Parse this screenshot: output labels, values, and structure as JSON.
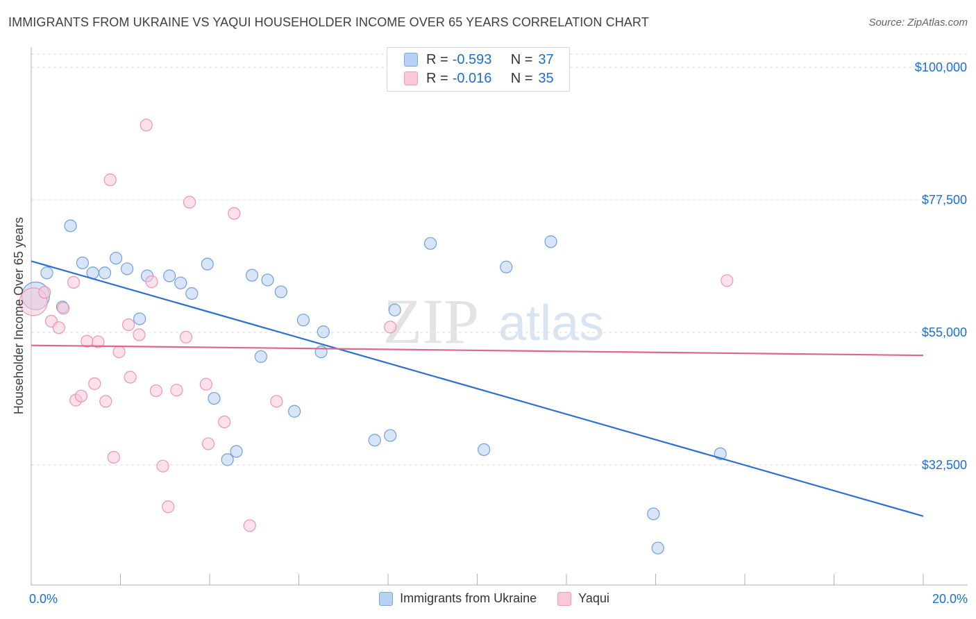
{
  "title": "IMMIGRANTS FROM UKRAINE VS YAQUI HOUSEHOLDER INCOME OVER 65 YEARS CORRELATION CHART",
  "source": "Source: ZipAtlas.com",
  "watermark": {
    "zip": "ZIP",
    "atlas": "atlas"
  },
  "colors": {
    "blue_fill": "#b8d0f3",
    "blue_stroke": "#6f9fdc",
    "blue_line": "#2a6fd1",
    "pink_fill": "#f9c9d8",
    "pink_stroke": "#ec95b1",
    "pink_line": "#e2638f",
    "accent_text": "#1a6fd1",
    "grid": "#d8d8d8"
  },
  "legend_top": [
    {
      "r_label": "R =",
      "r_value": "-0.593",
      "n_label": "N =",
      "n_value": "37"
    },
    {
      "r_label": "R =",
      "r_value": "-0.016",
      "n_label": "N =",
      "n_value": "35"
    }
  ],
  "legend_bottom": [
    "Immigrants from Ukraine",
    "Yaqui"
  ],
  "chart_data": {
    "type": "scatter",
    "xlabel": "",
    "ylabel": "Householder Income Over 65 years",
    "xlim": [
      0,
      20
    ],
    "ylim": [
      13000,
      102000
    ],
    "x_tick_labels": [
      {
        "value": 0,
        "label": "0.0%"
      },
      {
        "value": 20,
        "label": "20.0%"
      }
    ],
    "y_ticks": [
      {
        "value": 32500,
        "label": "$32,500"
      },
      {
        "value": 55000,
        "label": "$55,000"
      },
      {
        "value": 77500,
        "label": "$77,500"
      },
      {
        "value": 100000,
        "label": "$100,000"
      }
    ],
    "series": [
      {
        "name": "Immigrants from Ukraine",
        "color": "blue",
        "trend": {
          "x": [
            0,
            20
          ],
          "y": [
            67100,
            23800
          ]
        },
        "points": [
          {
            "x": 0.1,
            "y": 61200,
            "big": true
          },
          {
            "x": 0.35,
            "y": 65100
          },
          {
            "x": 0.7,
            "y": 59300
          },
          {
            "x": 0.88,
            "y": 73100
          },
          {
            "x": 1.15,
            "y": 66800
          },
          {
            "x": 1.38,
            "y": 65100
          },
          {
            "x": 1.65,
            "y": 65100
          },
          {
            "x": 1.9,
            "y": 67600
          },
          {
            "x": 2.15,
            "y": 65800
          },
          {
            "x": 2.6,
            "y": 64600
          },
          {
            "x": 2.43,
            "y": 57300
          },
          {
            "x": 3.1,
            "y": 64600
          },
          {
            "x": 3.35,
            "y": 63400
          },
          {
            "x": 3.6,
            "y": 61600
          },
          {
            "x": 3.95,
            "y": 66600
          },
          {
            "x": 4.1,
            "y": 43800
          },
          {
            "x": 4.4,
            "y": 33400
          },
          {
            "x": 4.6,
            "y": 34800
          },
          {
            "x": 4.95,
            "y": 64700
          },
          {
            "x": 5.15,
            "y": 50900
          },
          {
            "x": 5.3,
            "y": 63900
          },
          {
            "x": 5.6,
            "y": 61900
          },
          {
            "x": 5.9,
            "y": 41600
          },
          {
            "x": 6.1,
            "y": 57100
          },
          {
            "x": 6.5,
            "y": 51700
          },
          {
            "x": 6.55,
            "y": 55100
          },
          {
            "x": 7.7,
            "y": 36700
          },
          {
            "x": 8.05,
            "y": 37500
          },
          {
            "x": 8.15,
            "y": 58800
          },
          {
            "x": 8.95,
            "y": 70100
          },
          {
            "x": 10.15,
            "y": 35100
          },
          {
            "x": 10.65,
            "y": 66100
          },
          {
            "x": 11.65,
            "y": 70400
          },
          {
            "x": 13.95,
            "y": 24200
          },
          {
            "x": 14.0,
            "y": 24200,
            "hidden": true
          },
          {
            "x": 14.05,
            "y": 18400
          },
          {
            "x": 15.45,
            "y": 34400
          }
        ]
      },
      {
        "name": "Yaqui",
        "color": "pink",
        "trend": {
          "x": [
            0,
            20
          ],
          "y": [
            52800,
            51100
          ]
        },
        "points": [
          {
            "x": 0.05,
            "y": 60200,
            "big": true
          },
          {
            "x": 0.3,
            "y": 61800
          },
          {
            "x": 0.45,
            "y": 56900
          },
          {
            "x": 0.62,
            "y": 55800
          },
          {
            "x": 0.72,
            "y": 59100
          },
          {
            "x": 0.9,
            "y": 42200,
            "hidden": true
          },
          {
            "x": 0.95,
            "y": 63500
          },
          {
            "x": 1.0,
            "y": 43500
          },
          {
            "x": 1.12,
            "y": 44200
          },
          {
            "x": 1.25,
            "y": 53500
          },
          {
            "x": 1.42,
            "y": 46300
          },
          {
            "x": 1.5,
            "y": 53400
          },
          {
            "x": 1.67,
            "y": 43300
          },
          {
            "x": 1.77,
            "y": 80900
          },
          {
            "x": 1.85,
            "y": 33800
          },
          {
            "x": 1.97,
            "y": 51700
          },
          {
            "x": 2.18,
            "y": 56300
          },
          {
            "x": 2.22,
            "y": 47400
          },
          {
            "x": 2.42,
            "y": 54600
          },
          {
            "x": 2.58,
            "y": 90200
          },
          {
            "x": 2.7,
            "y": 63600
          },
          {
            "x": 2.8,
            "y": 45100
          },
          {
            "x": 2.95,
            "y": 32300
          },
          {
            "x": 3.07,
            "y": 25400
          },
          {
            "x": 3.26,
            "y": 45200
          },
          {
            "x": 3.47,
            "y": 54200
          },
          {
            "x": 3.55,
            "y": 77100
          },
          {
            "x": 3.92,
            "y": 46200
          },
          {
            "x": 3.97,
            "y": 36100
          },
          {
            "x": 4.33,
            "y": 39800
          },
          {
            "x": 4.55,
            "y": 75200
          },
          {
            "x": 4.9,
            "y": 22200
          },
          {
            "x": 5.5,
            "y": 43300
          },
          {
            "x": 8.05,
            "y": 55900
          },
          {
            "x": 15.6,
            "y": 63800
          }
        ]
      }
    ]
  }
}
